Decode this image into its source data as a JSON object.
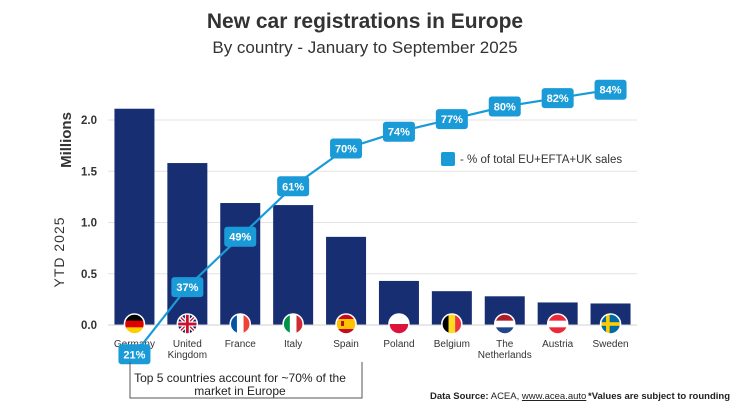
{
  "chart_data": {
    "type": "bar",
    "title": "New car registrations in Europe",
    "subtitle": "By country - January to September 2025",
    "ylabel_main": "Millions",
    "ylabel_secondary": "YTD 2025",
    "ylim": [
      0,
      2.3
    ],
    "yticks": [
      0.0,
      0.5,
      1.0,
      1.5,
      2.0
    ],
    "ytick_labels": [
      "0.0",
      "0.5",
      "1.0",
      "1.5",
      "2.0"
    ],
    "grid": true,
    "categories": [
      [
        "Germany"
      ],
      [
        "United",
        "Kingdom"
      ],
      [
        "France"
      ],
      [
        "Italy"
      ],
      [
        "Spain"
      ],
      [
        "Poland"
      ],
      [
        "Belgium"
      ],
      [
        "The",
        "Netherlands"
      ],
      [
        "Austria"
      ],
      [
        "Sweden"
      ]
    ],
    "flags": [
      "germany-flag-icon",
      "uk-flag-icon",
      "france-flag-icon",
      "italy-flag-icon",
      "spain-flag-icon",
      "poland-flag-icon",
      "belgium-flag-icon",
      "netherlands-flag-icon",
      "austria-flag-icon",
      "sweden-flag-icon"
    ],
    "values": [
      2.11,
      1.58,
      1.19,
      1.17,
      0.86,
      0.43,
      0.33,
      0.28,
      0.22,
      0.21
    ],
    "line": {
      "values": [
        21,
        37,
        49,
        61,
        70,
        74,
        77,
        80,
        82,
        84
      ],
      "labels": [
        "21%",
        "37%",
        "49%",
        "61%",
        "70%",
        "74%",
        "77%",
        "80%",
        "82%",
        "84%"
      ]
    },
    "legend": {
      "label": "- % of total EU+EFTA+UK sales",
      "position": "right"
    },
    "annotation": [
      "Top 5 countries account for ~70% of the",
      "market in Europe"
    ],
    "colors": {
      "bar": "#182e72",
      "line": "#1a9bd7",
      "grid": "#e3e3e3",
      "axis_text": "#333333"
    }
  },
  "footer": {
    "source_label": "Data Source:",
    "source_text": "ACEA,",
    "source_link": "www.acea.auto",
    "note": "*Values are subject to rounding"
  }
}
